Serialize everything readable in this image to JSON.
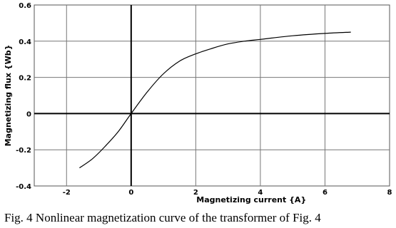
{
  "chart_data": {
    "type": "line",
    "xlabel": "Magnetizing current {A}",
    "ylabel": "Magnetizing flux {Wb}",
    "xlim": [
      -3,
      8
    ],
    "ylim": [
      -0.4,
      0.6
    ],
    "xticks": [
      -2,
      0,
      2,
      4,
      6,
      8
    ],
    "yticks": [
      -0.4,
      -0.2,
      0,
      0.2,
      0.4,
      0.6
    ],
    "x_tick_labels": [
      "-2",
      "0",
      "2",
      "4",
      "6",
      "8"
    ],
    "y_tick_labels": [
      "-0.4",
      "-0.2",
      "0",
      "0.2",
      "0.4",
      "0.6"
    ],
    "grid": true,
    "series": [
      {
        "color": "#000000",
        "x": [
          -1.6,
          -1.2,
          -0.8,
          -0.4,
          0,
          0.5,
          1.0,
          1.5,
          2.0,
          2.5,
          3.0,
          3.5,
          4.0,
          5.0,
          6.0,
          6.8
        ],
        "y": [
          -0.3,
          -0.25,
          -0.18,
          -0.1,
          0,
          0.12,
          0.22,
          0.29,
          0.33,
          0.36,
          0.385,
          0.4,
          0.41,
          0.43,
          0.443,
          0.45
        ]
      }
    ]
  },
  "caption": "Fig. 4 Nonlinear magnetization curve of the transformer of Fig. 4"
}
